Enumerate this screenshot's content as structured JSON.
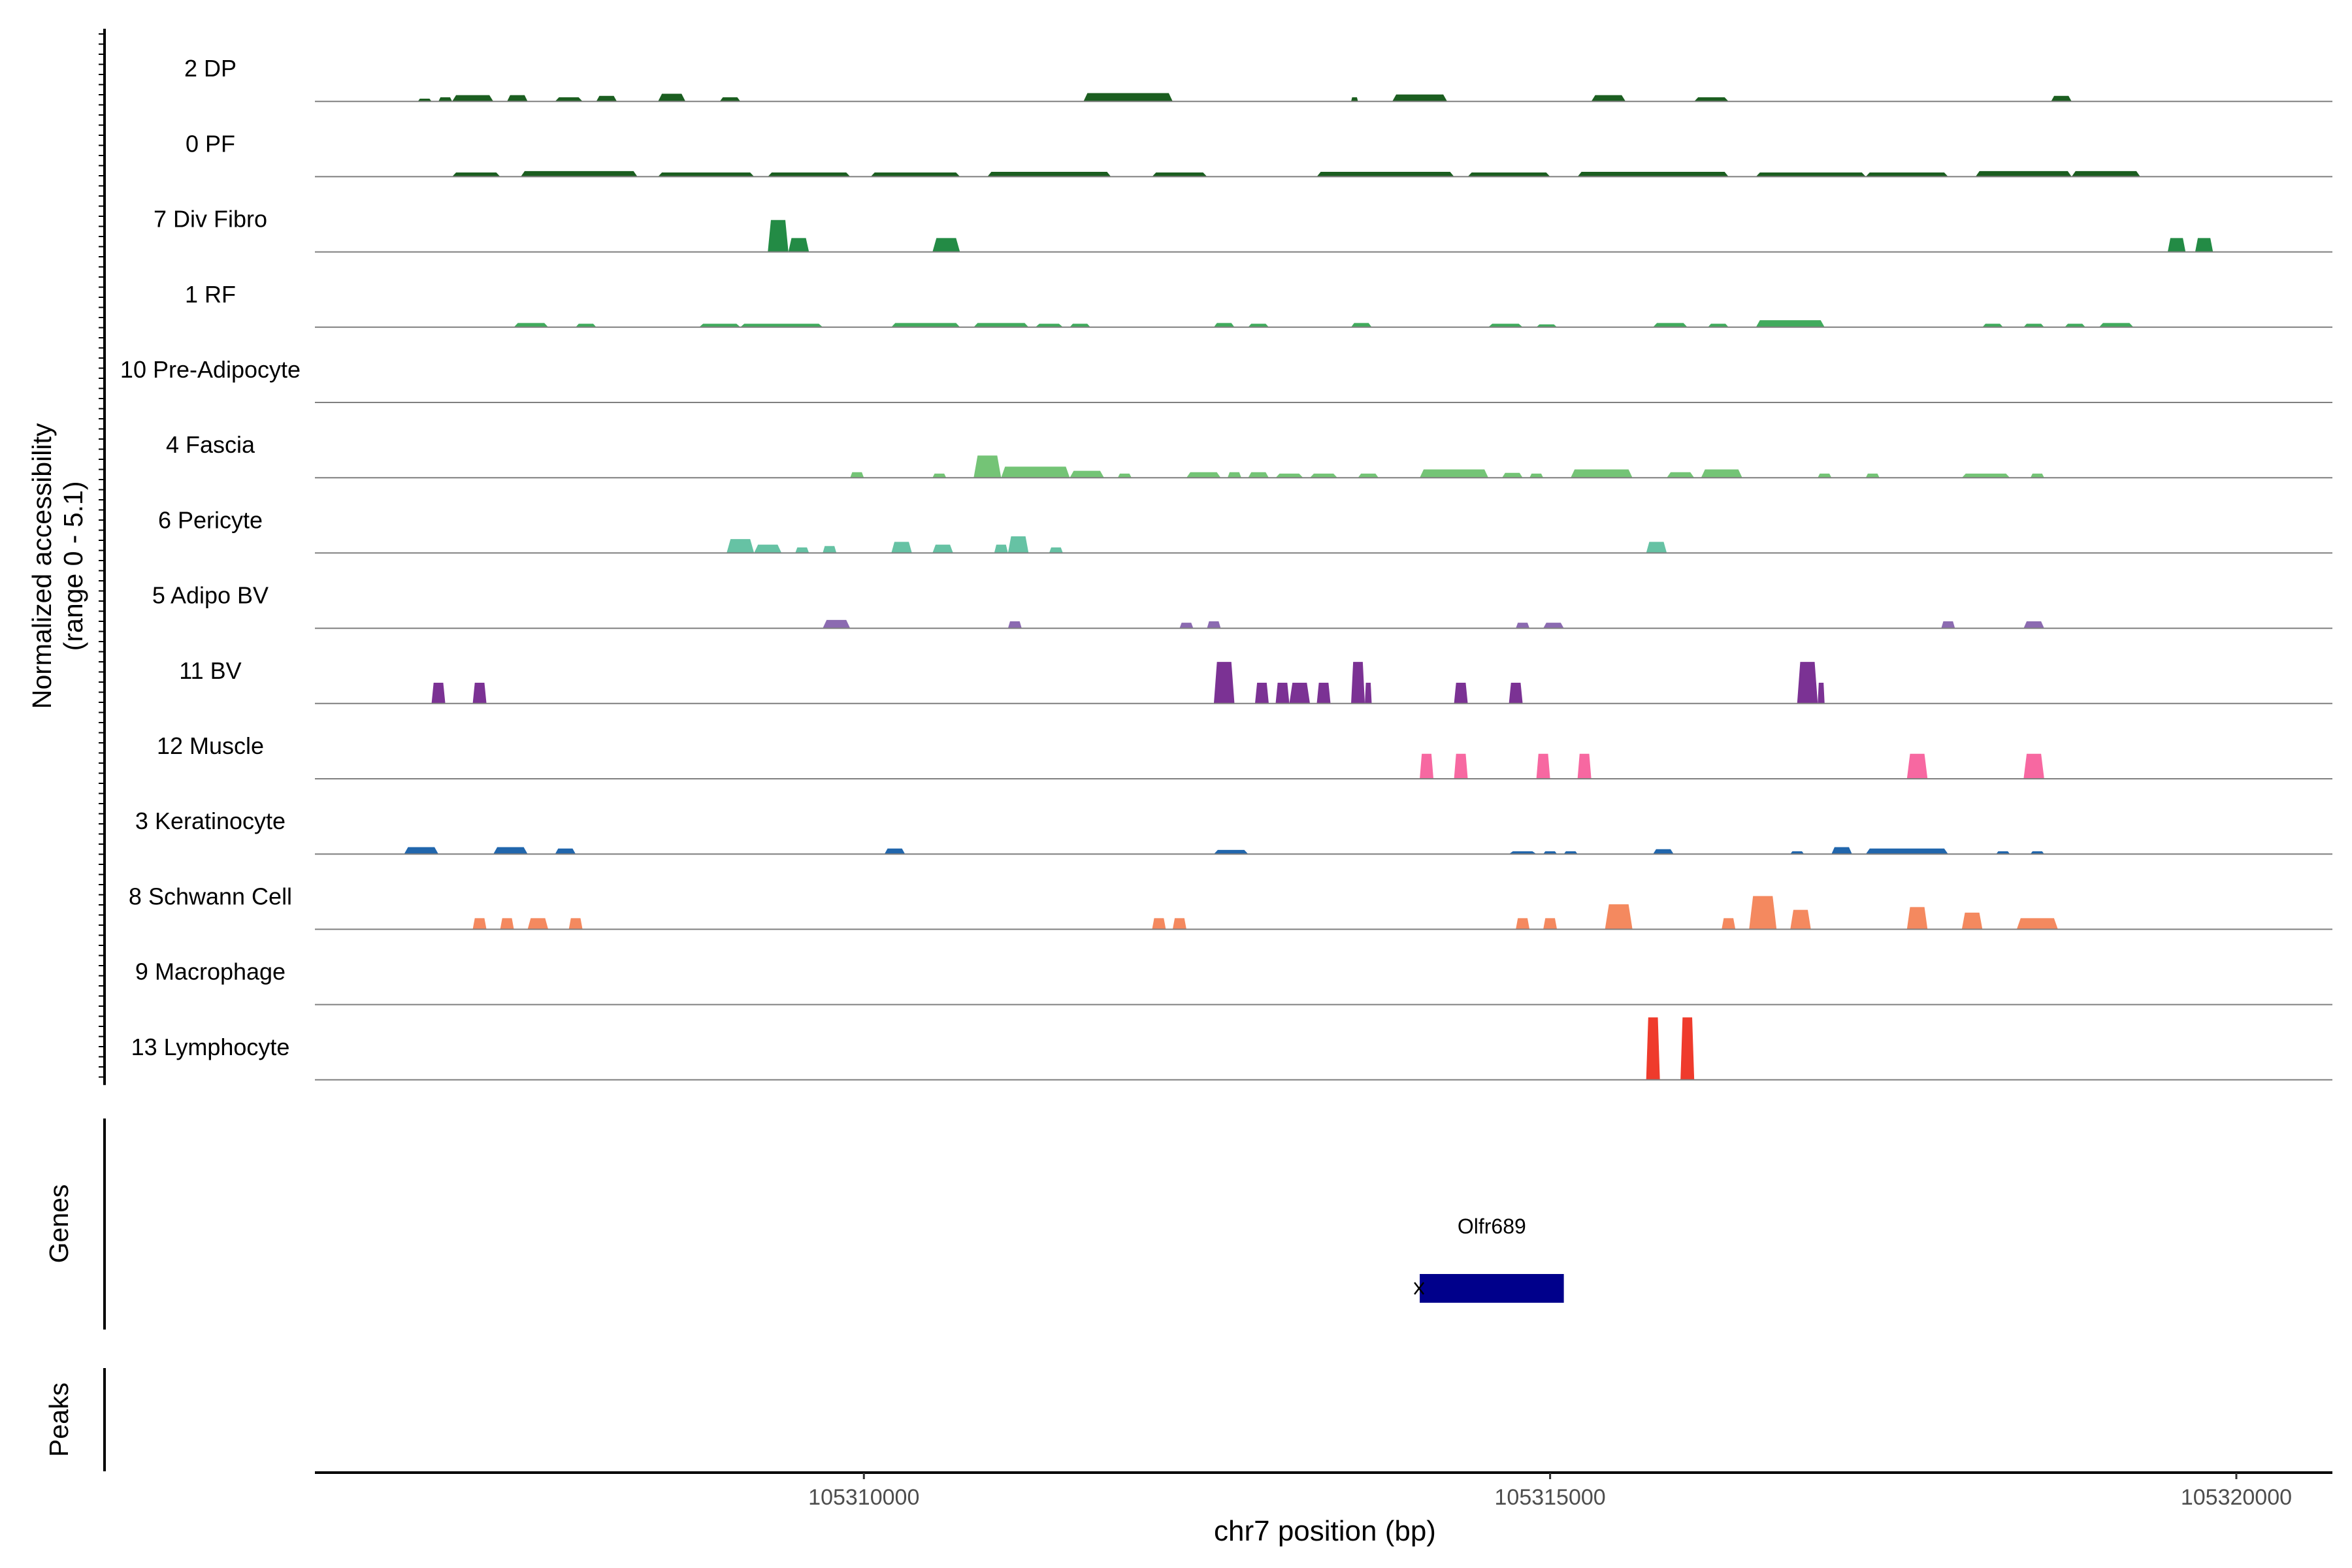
{
  "chart_data": {
    "type": "area",
    "title": "",
    "ylabel_lines": [
      "Normalized accessibility",
      "(range 0 - 5.1)"
    ],
    "y_range": [
      0,
      5.1
    ],
    "xlabel": "chr7 position (bp)",
    "xlim": [
      105306000,
      105320700
    ],
    "x_ticks": [
      105310000,
      105315000,
      105320000
    ],
    "x_tick_labels": [
      "105310000",
      "105315000",
      "105320000"
    ],
    "tracks": [
      {
        "name": "2 DP",
        "color": "#1b5e20",
        "peaks": [
          [
            105306750,
            105306850,
            0.2
          ],
          [
            105306900,
            105307000,
            0.3
          ],
          [
            105307000,
            105307300,
            0.45
          ],
          [
            105307400,
            105307550,
            0.45
          ],
          [
            105307750,
            105307950,
            0.3
          ],
          [
            105308050,
            105308200,
            0.4
          ],
          [
            105308500,
            105308700,
            0.55
          ],
          [
            105308950,
            105309100,
            0.3
          ],
          [
            105311600,
            105312250,
            0.6
          ],
          [
            105313550,
            105313600,
            0.3
          ],
          [
            105313850,
            105314250,
            0.5
          ],
          [
            105315300,
            105315550,
            0.45
          ],
          [
            105316050,
            105316300,
            0.3
          ],
          [
            105318650,
            105318800,
            0.4
          ]
        ]
      },
      {
        "name": "0 PF",
        "color": "#1b5e20",
        "peaks": [
          [
            105307000,
            105307350,
            0.3
          ],
          [
            105307500,
            105308350,
            0.4
          ],
          [
            105308500,
            105309200,
            0.3
          ],
          [
            105309300,
            105309900,
            0.3
          ],
          [
            105310050,
            105310700,
            0.3
          ],
          [
            105310900,
            105311800,
            0.35
          ],
          [
            105312100,
            105312500,
            0.3
          ],
          [
            105313300,
            105314300,
            0.35
          ],
          [
            105314400,
            105315000,
            0.3
          ],
          [
            105315200,
            105316300,
            0.35
          ],
          [
            105316500,
            105317300,
            0.3
          ],
          [
            105317300,
            105317900,
            0.3
          ],
          [
            105318100,
            105318800,
            0.4
          ],
          [
            105318800,
            105319300,
            0.4
          ]
        ]
      },
      {
        "name": "7 Div Fibro",
        "color": "#238b45",
        "peaks": [
          [
            105309300,
            105309450,
            2.3
          ],
          [
            105309450,
            105309600,
            1.0
          ],
          [
            105310500,
            105310700,
            1.0
          ],
          [
            105319500,
            105319630,
            1.0
          ],
          [
            105319700,
            105319830,
            1.0
          ]
        ]
      },
      {
        "name": "1 RF",
        "color": "#41ab5d",
        "peaks": [
          [
            105307450,
            105307700,
            0.3
          ],
          [
            105307900,
            105308050,
            0.25
          ],
          [
            105308800,
            105309100,
            0.25
          ],
          [
            105309100,
            105309700,
            0.25
          ],
          [
            105310200,
            105310700,
            0.3
          ],
          [
            105310800,
            105311200,
            0.3
          ],
          [
            105311250,
            105311450,
            0.25
          ],
          [
            105311500,
            105311650,
            0.25
          ],
          [
            105312550,
            105312700,
            0.3
          ],
          [
            105312800,
            105312950,
            0.25
          ],
          [
            105313550,
            105313700,
            0.3
          ],
          [
            105314550,
            105314800,
            0.25
          ],
          [
            105314900,
            105315050,
            0.2
          ],
          [
            105315750,
            105316000,
            0.3
          ],
          [
            105316150,
            105316300,
            0.25
          ],
          [
            105316500,
            105317000,
            0.5
          ],
          [
            105318150,
            105318300,
            0.25
          ],
          [
            105318450,
            105318600,
            0.25
          ],
          [
            105318750,
            105318900,
            0.25
          ],
          [
            105319000,
            105319250,
            0.3
          ]
        ]
      },
      {
        "name": "10 Pre-Adipocyte",
        "color": "#74c476",
        "peaks": []
      },
      {
        "name": "4 Fascia",
        "color": "#74c476",
        "peaks": [
          [
            105309900,
            105310000,
            0.4
          ],
          [
            105310500,
            105310600,
            0.3
          ],
          [
            105310800,
            105311000,
            1.6
          ],
          [
            105311000,
            105311500,
            0.8
          ],
          [
            105311500,
            105311750,
            0.5
          ],
          [
            105311850,
            105311950,
            0.3
          ],
          [
            105312350,
            105312600,
            0.4
          ],
          [
            105312650,
            105312750,
            0.4
          ],
          [
            105312800,
            105312950,
            0.4
          ],
          [
            105313000,
            105313200,
            0.3
          ],
          [
            105313250,
            105313450,
            0.3
          ],
          [
            105313600,
            105313750,
            0.3
          ],
          [
            105314050,
            105314550,
            0.6
          ],
          [
            105314650,
            105314800,
            0.35
          ],
          [
            105314850,
            105314950,
            0.3
          ],
          [
            105315150,
            105315600,
            0.6
          ],
          [
            105315850,
            105316050,
            0.4
          ],
          [
            105316100,
            105316400,
            0.6
          ],
          [
            105316950,
            105317050,
            0.3
          ],
          [
            105317300,
            105317400,
            0.3
          ],
          [
            105318000,
            105318350,
            0.3
          ],
          [
            105318500,
            105318600,
            0.3
          ]
        ]
      },
      {
        "name": "6 Pericyte",
        "color": "#66c2a4",
        "peaks": [
          [
            105309000,
            105309200,
            1.0
          ],
          [
            105309200,
            105309400,
            0.6
          ],
          [
            105309500,
            105309600,
            0.4
          ],
          [
            105309700,
            105309800,
            0.5
          ],
          [
            105310200,
            105310350,
            0.8
          ],
          [
            105310500,
            105310650,
            0.6
          ],
          [
            105310950,
            105311050,
            0.6
          ],
          [
            105311050,
            105311200,
            1.2
          ],
          [
            105311350,
            105311450,
            0.4
          ],
          [
            105315700,
            105315850,
            0.8
          ]
        ]
      },
      {
        "name": "5 Adipo BV",
        "color": "#8c6bb1",
        "peaks": [
          [
            105309700,
            105309900,
            0.6
          ],
          [
            105311050,
            105311150,
            0.5
          ],
          [
            105312300,
            105312400,
            0.4
          ],
          [
            105312500,
            105312600,
            0.5
          ],
          [
            105314750,
            105314850,
            0.4
          ],
          [
            105314950,
            105315100,
            0.4
          ],
          [
            105317850,
            105317950,
            0.5
          ],
          [
            105318450,
            105318600,
            0.5
          ]
        ]
      },
      {
        "name": "11 BV",
        "color": "#7b3294",
        "peaks": [
          [
            105306850,
            105306950,
            1.5
          ],
          [
            105307150,
            105307250,
            1.5
          ],
          [
            105312550,
            105312700,
            3.0
          ],
          [
            105312850,
            105312950,
            1.5
          ],
          [
            105313000,
            105313100,
            1.5
          ],
          [
            105313100,
            105313250,
            1.5
          ],
          [
            105313300,
            105313400,
            1.5
          ],
          [
            105313550,
            105313650,
            3.0
          ],
          [
            105313650,
            105313700,
            1.5
          ],
          [
            105314300,
            105314400,
            1.5
          ],
          [
            105314700,
            105314800,
            1.5
          ],
          [
            105316800,
            105316950,
            3.0
          ],
          [
            105316950,
            105317000,
            1.5
          ]
        ]
      },
      {
        "name": "12 Muscle",
        "color": "#f768a1",
        "peaks": [
          [
            105314050,
            105314150,
            1.8
          ],
          [
            105314300,
            105314400,
            1.8
          ],
          [
            105314900,
            105315000,
            1.8
          ],
          [
            105315200,
            105315300,
            1.8
          ],
          [
            105317600,
            105317750,
            1.8
          ],
          [
            105318450,
            105318600,
            1.8
          ]
        ]
      },
      {
        "name": "3 Keratinocyte",
        "color": "#2166ac",
        "peaks": [
          [
            105306650,
            105306900,
            0.5
          ],
          [
            105307300,
            105307550,
            0.5
          ],
          [
            105307750,
            105307900,
            0.4
          ],
          [
            105310150,
            105310300,
            0.4
          ],
          [
            105312550,
            105312800,
            0.3
          ],
          [
            105314700,
            105314900,
            0.2
          ],
          [
            105314950,
            105315050,
            0.2
          ],
          [
            105315100,
            105315200,
            0.2
          ],
          [
            105315750,
            105315900,
            0.35
          ],
          [
            105316750,
            105316850,
            0.2
          ],
          [
            105317050,
            105317200,
            0.5
          ],
          [
            105317300,
            105317900,
            0.4
          ],
          [
            105318250,
            105318350,
            0.2
          ],
          [
            105318500,
            105318600,
            0.2
          ]
        ]
      },
      {
        "name": "8 Schwann Cell",
        "color": "#f4895f",
        "peaks": [
          [
            105307150,
            105307250,
            0.8
          ],
          [
            105307350,
            105307450,
            0.8
          ],
          [
            105307550,
            105307700,
            0.8
          ],
          [
            105307850,
            105307950,
            0.8
          ],
          [
            105312100,
            105312200,
            0.8
          ],
          [
            105312250,
            105312350,
            0.8
          ],
          [
            105314750,
            105314850,
            0.8
          ],
          [
            105314950,
            105315050,
            0.8
          ],
          [
            105315400,
            105315600,
            1.8
          ],
          [
            105316250,
            105316350,
            0.8
          ],
          [
            105316450,
            105316650,
            2.4
          ],
          [
            105316750,
            105316900,
            1.4
          ],
          [
            105317600,
            105317750,
            1.6
          ],
          [
            105318000,
            105318150,
            1.2
          ],
          [
            105318400,
            105318700,
            0.8
          ]
        ]
      },
      {
        "name": "9 Macrophage",
        "color": "#d7301f",
        "peaks": []
      },
      {
        "name": "13 Lymphocyte",
        "color": "#ef3b2c",
        "peaks": [
          [
            105315700,
            105315800,
            4.5
          ],
          [
            105315950,
            105316050,
            4.5
          ]
        ]
      }
    ],
    "genes_label": "Genes",
    "peaks_label": "Peaks",
    "genes": [
      {
        "name": "Olfr689",
        "start": 105314050,
        "end": 105315100,
        "strand": "-",
        "color": "#00008b"
      }
    ]
  }
}
